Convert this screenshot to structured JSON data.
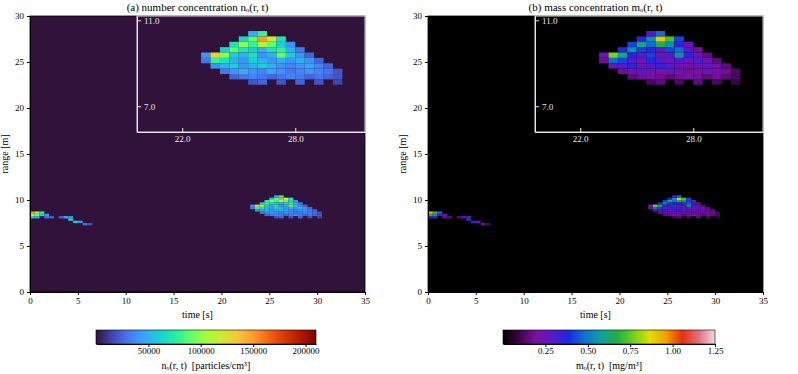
{
  "chart_data": [
    {
      "type": "heatmap",
      "title": "(a) number concentration nₒ(r, t)",
      "x_label": "time [s]",
      "y_label": "range [m]",
      "xlim": [
        0,
        35
      ],
      "ylim": [
        0,
        30
      ],
      "xticks": [
        0,
        5,
        10,
        15,
        20,
        25,
        30,
        35
      ],
      "yticks": [
        0,
        5,
        10,
        15,
        20,
        25,
        30
      ],
      "cells": [
        [
          0,
          8.5,
          150000
        ],
        [
          0,
          8.25,
          110000
        ],
        [
          0,
          8.0,
          60000
        ],
        [
          0.5,
          8.5,
          120000
        ],
        [
          0.5,
          8.25,
          90000
        ],
        [
          0.5,
          8.0,
          50000
        ],
        [
          1.0,
          8.5,
          80000
        ],
        [
          1.0,
          8.25,
          60000
        ],
        [
          1.5,
          8.25,
          40000
        ],
        [
          1.5,
          8.0,
          30000
        ],
        [
          2.0,
          8.0,
          25000
        ],
        [
          3.0,
          8.0,
          25000
        ],
        [
          3.5,
          8.0,
          50000
        ],
        [
          4.0,
          8.0,
          40000
        ],
        [
          4.0,
          7.75,
          70000
        ],
        [
          4.5,
          7.5,
          60000
        ],
        [
          5.0,
          7.5,
          40000
        ],
        [
          5.5,
          7.25,
          30000
        ],
        [
          6.0,
          7.25,
          20000
        ],
        [
          25.0,
          10.0,
          60000
        ],
        [
          25.5,
          10.0,
          90000
        ],
        [
          26.0,
          10.0,
          150000
        ],
        [
          26.5,
          10.0,
          120000
        ],
        [
          27.0,
          10.0,
          70000
        ],
        [
          25.5,
          10.25,
          50000
        ],
        [
          26.0,
          10.25,
          80000
        ],
        [
          24.5,
          9.75,
          70000
        ],
        [
          25.0,
          9.75,
          100000
        ],
        [
          25.5,
          9.75,
          80000
        ],
        [
          26.0,
          9.75,
          110000
        ],
        [
          26.5,
          9.75,
          90000
        ],
        [
          27.0,
          9.75,
          60000
        ],
        [
          27.5,
          9.75,
          40000
        ],
        [
          24.0,
          9.5,
          60000
        ],
        [
          24.5,
          9.5,
          90000
        ],
        [
          25.0,
          9.5,
          70000
        ],
        [
          25.5,
          9.5,
          60000
        ],
        [
          26.0,
          9.5,
          50000
        ],
        [
          26.5,
          9.5,
          70000
        ],
        [
          27.0,
          9.5,
          80000
        ],
        [
          27.5,
          9.5,
          50000
        ],
        [
          28.0,
          9.5,
          30000
        ],
        [
          23.0,
          9.25,
          40000
        ],
        [
          23.5,
          9.25,
          130000
        ],
        [
          24.0,
          9.25,
          100000
        ],
        [
          24.5,
          9.25,
          60000
        ],
        [
          25.0,
          9.25,
          50000
        ],
        [
          25.5,
          9.25,
          70000
        ],
        [
          26.0,
          9.25,
          40000
        ],
        [
          26.5,
          9.25,
          50000
        ],
        [
          27.0,
          9.25,
          90000
        ],
        [
          27.5,
          9.25,
          60000
        ],
        [
          28.0,
          9.25,
          40000
        ],
        [
          28.5,
          9.25,
          25000
        ],
        [
          23.0,
          9.0,
          30000
        ],
        [
          23.5,
          9.0,
          80000
        ],
        [
          24.0,
          9.0,
          70000
        ],
        [
          24.5,
          9.0,
          50000
        ],
        [
          25.0,
          9.0,
          40000
        ],
        [
          25.5,
          9.0,
          60000
        ],
        [
          26.0,
          9.0,
          50000
        ],
        [
          26.5,
          9.0,
          40000
        ],
        [
          27.0,
          9.0,
          50000
        ],
        [
          27.5,
          9.0,
          40000
        ],
        [
          28.0,
          9.0,
          50000
        ],
        [
          28.5,
          9.0,
          40000
        ],
        [
          29.0,
          9.0,
          25000
        ],
        [
          23.5,
          8.75,
          40000
        ],
        [
          24.0,
          8.75,
          50000
        ],
        [
          24.5,
          8.75,
          60000
        ],
        [
          25.0,
          8.75,
          40000
        ],
        [
          25.5,
          8.75,
          50000
        ],
        [
          26.0,
          8.75,
          60000
        ],
        [
          26.5,
          8.75,
          50000
        ],
        [
          27.0,
          8.75,
          40000
        ],
        [
          27.5,
          8.75,
          35000
        ],
        [
          28.0,
          8.75,
          40000
        ],
        [
          28.5,
          8.75,
          45000
        ],
        [
          29.0,
          8.75,
          35000
        ],
        [
          29.5,
          8.75,
          25000
        ],
        [
          24.0,
          8.5,
          30000
        ],
        [
          24.5,
          8.5,
          40000
        ],
        [
          25.0,
          8.5,
          50000
        ],
        [
          25.5,
          8.5,
          40000
        ],
        [
          26.0,
          8.5,
          35000
        ],
        [
          26.5,
          8.5,
          45000
        ],
        [
          27.0,
          8.5,
          40000
        ],
        [
          27.5,
          8.5,
          30000
        ],
        [
          28.0,
          8.5,
          35000
        ],
        [
          28.5,
          8.5,
          40000
        ],
        [
          29.0,
          8.5,
          35000
        ],
        [
          29.5,
          8.5,
          30000
        ],
        [
          30.0,
          8.5,
          20000
        ],
        [
          24.5,
          8.25,
          25000
        ],
        [
          25.0,
          8.25,
          30000
        ],
        [
          25.5,
          8.25,
          35000
        ],
        [
          26.0,
          8.25,
          30000
        ],
        [
          26.5,
          8.25,
          25000
        ],
        [
          27.0,
          8.25,
          30000
        ],
        [
          27.5,
          8.25,
          35000
        ],
        [
          28.0,
          8.25,
          30000
        ],
        [
          28.5,
          8.25,
          25000
        ],
        [
          29.0,
          8.25,
          30000
        ],
        [
          29.5,
          8.25,
          25000
        ],
        [
          30.0,
          8.25,
          20000
        ],
        [
          25.5,
          8.0,
          20000
        ],
        [
          26.0,
          8.0,
          25000
        ],
        [
          27.0,
          8.0,
          20000
        ],
        [
          28.0,
          8.0,
          25000
        ],
        [
          29.0,
          8.0,
          20000
        ],
        [
          30.0,
          8.0,
          15000
        ]
      ],
      "inset": {
        "xlim": [
          19.6,
          31.7
        ],
        "ylim": [
          5.8,
          11.2
        ],
        "xticks": [
          {
            "value": 22,
            "label": "22.0"
          },
          {
            "value": 28,
            "label": "28.0"
          }
        ],
        "yticks": [
          {
            "value": 7,
            "label": "7.0"
          },
          {
            "value": 11,
            "label": "11.0"
          }
        ]
      },
      "colorbar": {
        "label": "nₒ(r, t)  [particles/cm³]",
        "lim": [
          0,
          210000
        ],
        "ticks": [
          50000,
          100000,
          150000,
          200000
        ]
      }
    },
    {
      "type": "heatmap",
      "title": "(b) mass concentration mₒ(r, t)",
      "x_label": "time [s]",
      "y_label": "range [m]",
      "xlim": [
        0,
        35
      ],
      "ylim": [
        0,
        30
      ],
      "xticks": [
        0,
        5,
        10,
        15,
        20,
        25,
        30,
        35
      ],
      "yticks": [
        0,
        5,
        10,
        15,
        20,
        25,
        30
      ],
      "cells": [
        [
          0,
          8.5,
          0.9
        ],
        [
          0,
          8.25,
          0.66
        ],
        [
          0,
          8.0,
          0.36
        ],
        [
          0.5,
          8.5,
          0.72
        ],
        [
          0.5,
          8.25,
          0.54
        ],
        [
          0.5,
          8.0,
          0.3
        ],
        [
          1.0,
          8.5,
          0.48
        ],
        [
          1.0,
          8.25,
          0.36
        ],
        [
          1.5,
          8.25,
          0.24
        ],
        [
          1.5,
          8.0,
          0.18
        ],
        [
          2.0,
          8.0,
          0.15
        ],
        [
          3.0,
          8.0,
          0.15
        ],
        [
          3.5,
          8.0,
          0.3
        ],
        [
          4.0,
          8.0,
          0.24
        ],
        [
          4.0,
          7.75,
          0.42
        ],
        [
          4.5,
          7.5,
          0.36
        ],
        [
          5.0,
          7.5,
          0.24
        ],
        [
          5.5,
          7.25,
          0.18
        ],
        [
          6.0,
          7.25,
          0.12
        ],
        [
          25.0,
          10.0,
          0.36
        ],
        [
          25.5,
          10.0,
          0.54
        ],
        [
          26.0,
          10.0,
          0.9
        ],
        [
          26.5,
          10.0,
          0.72
        ],
        [
          27.0,
          10.0,
          0.42
        ],
        [
          25.5,
          10.25,
          0.3
        ],
        [
          26.0,
          10.25,
          0.48
        ],
        [
          24.5,
          9.75,
          0.42
        ],
        [
          25.0,
          9.75,
          0.6
        ],
        [
          25.5,
          9.75,
          0.48
        ],
        [
          26.0,
          9.75,
          0.66
        ],
        [
          26.5,
          9.75,
          0.54
        ],
        [
          27.0,
          9.75,
          0.36
        ],
        [
          27.5,
          9.75,
          0.24
        ],
        [
          24.0,
          9.5,
          0.36
        ],
        [
          24.5,
          9.5,
          0.54
        ],
        [
          25.0,
          9.5,
          0.42
        ],
        [
          25.5,
          9.5,
          0.36
        ],
        [
          26.0,
          9.5,
          0.3
        ],
        [
          26.5,
          9.5,
          0.42
        ],
        [
          27.0,
          9.5,
          0.48
        ],
        [
          27.5,
          9.5,
          0.3
        ],
        [
          28.0,
          9.5,
          0.18
        ],
        [
          23.0,
          9.25,
          0.24
        ],
        [
          23.5,
          9.25,
          0.78
        ],
        [
          24.0,
          9.25,
          0.6
        ],
        [
          24.5,
          9.25,
          0.36
        ],
        [
          25.0,
          9.25,
          0.3
        ],
        [
          25.5,
          9.25,
          0.42
        ],
        [
          26.0,
          9.25,
          0.24
        ],
        [
          26.5,
          9.25,
          0.3
        ],
        [
          27.0,
          9.25,
          0.54
        ],
        [
          27.5,
          9.25,
          0.36
        ],
        [
          28.0,
          9.25,
          0.24
        ],
        [
          28.5,
          9.25,
          0.15
        ],
        [
          23.0,
          9.0,
          0.18
        ],
        [
          23.5,
          9.0,
          0.48
        ],
        [
          24.0,
          9.0,
          0.42
        ],
        [
          24.5,
          9.0,
          0.3
        ],
        [
          25.0,
          9.0,
          0.24
        ],
        [
          25.5,
          9.0,
          0.36
        ],
        [
          26.0,
          9.0,
          0.3
        ],
        [
          26.5,
          9.0,
          0.24
        ],
        [
          27.0,
          9.0,
          0.3
        ],
        [
          27.5,
          9.0,
          0.24
        ],
        [
          28.0,
          9.0,
          0.3
        ],
        [
          28.5,
          9.0,
          0.24
        ],
        [
          29.0,
          9.0,
          0.15
        ],
        [
          23.5,
          8.75,
          0.24
        ],
        [
          24.0,
          8.75,
          0.3
        ],
        [
          24.5,
          8.75,
          0.36
        ],
        [
          25.0,
          8.75,
          0.24
        ],
        [
          25.5,
          8.75,
          0.3
        ],
        [
          26.0,
          8.75,
          0.36
        ],
        [
          26.5,
          8.75,
          0.3
        ],
        [
          27.0,
          8.75,
          0.24
        ],
        [
          27.5,
          8.75,
          0.21
        ],
        [
          28.0,
          8.75,
          0.24
        ],
        [
          28.5,
          8.75,
          0.27
        ],
        [
          29.0,
          8.75,
          0.21
        ],
        [
          29.5,
          8.75,
          0.15
        ],
        [
          24.0,
          8.5,
          0.18
        ],
        [
          24.5,
          8.5,
          0.24
        ],
        [
          25.0,
          8.5,
          0.3
        ],
        [
          25.5,
          8.5,
          0.24
        ],
        [
          26.0,
          8.5,
          0.21
        ],
        [
          26.5,
          8.5,
          0.27
        ],
        [
          27.0,
          8.5,
          0.24
        ],
        [
          27.5,
          8.5,
          0.18
        ],
        [
          28.0,
          8.5,
          0.21
        ],
        [
          28.5,
          8.5,
          0.24
        ],
        [
          29.0,
          8.5,
          0.21
        ],
        [
          29.5,
          8.5,
          0.18
        ],
        [
          30.0,
          8.5,
          0.12
        ],
        [
          24.5,
          8.25,
          0.15
        ],
        [
          25.0,
          8.25,
          0.18
        ],
        [
          25.5,
          8.25,
          0.21
        ],
        [
          26.0,
          8.25,
          0.18
        ],
        [
          26.5,
          8.25,
          0.15
        ],
        [
          27.0,
          8.25,
          0.18
        ],
        [
          27.5,
          8.25,
          0.21
        ],
        [
          28.0,
          8.25,
          0.18
        ],
        [
          28.5,
          8.25,
          0.15
        ],
        [
          29.0,
          8.25,
          0.18
        ],
        [
          29.5,
          8.25,
          0.15
        ],
        [
          30.0,
          8.25,
          0.12
        ],
        [
          25.5,
          8.0,
          0.12
        ],
        [
          26.0,
          8.0,
          0.15
        ],
        [
          27.0,
          8.0,
          0.12
        ],
        [
          28.0,
          8.0,
          0.15
        ],
        [
          29.0,
          8.0,
          0.12
        ],
        [
          30.0,
          8.0,
          0.09
        ]
      ],
      "inset": {
        "xlim": [
          19.6,
          31.7
        ],
        "ylim": [
          5.8,
          11.2
        ],
        "xticks": [
          {
            "value": 22,
            "label": "22.0"
          },
          {
            "value": 28,
            "label": "28.0"
          }
        ],
        "yticks": [
          {
            "value": 7,
            "label": "7.0"
          },
          {
            "value": 11,
            "label": "11.0"
          }
        ]
      },
      "colorbar": {
        "label": "mₒ(r, t)  [mg/m³]",
        "lim": [
          0,
          1.25
        ],
        "ticks": [
          0.25,
          {
            "value": 0.5,
            "label": "0.50"
          },
          0.75,
          {
            "value": 1,
            "label": "1.00"
          },
          1.25
        ]
      }
    }
  ]
}
